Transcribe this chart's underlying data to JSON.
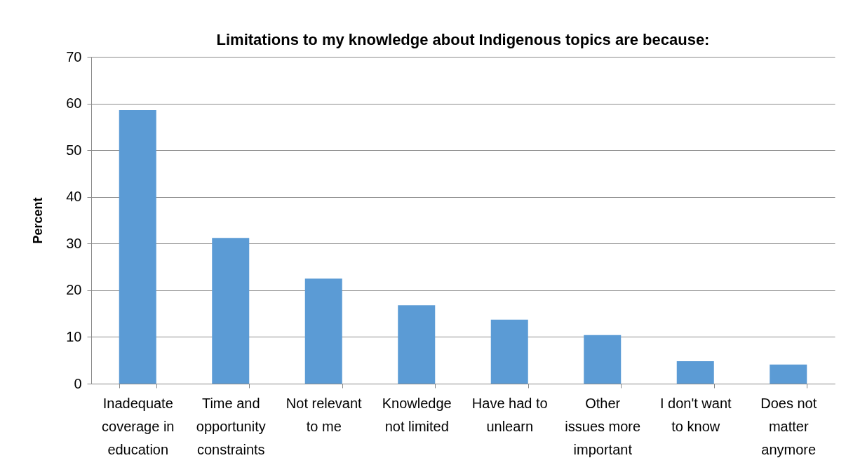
{
  "chart_data": {
    "type": "bar",
    "title": "Limitations to my knowledge about Indigenous topics are because:",
    "ylabel": "Percent",
    "categories": [
      "Inadequate coverage in education",
      "Time and opportunity constraints",
      "Not relevant to me",
      "Knowledge not limited",
      "Have had to unlearn",
      "Other issues more important",
      "I don't want to know",
      "Does not matter anymore"
    ],
    "values": [
      58.6,
      31.2,
      22.5,
      16.8,
      13.7,
      10.4,
      4.8,
      4.1
    ],
    "color": "#5b9bd5",
    "ylim": [
      0,
      70
    ],
    "yticks": [
      0,
      10,
      20,
      30,
      40,
      50,
      60,
      70
    ],
    "grid": "y"
  }
}
